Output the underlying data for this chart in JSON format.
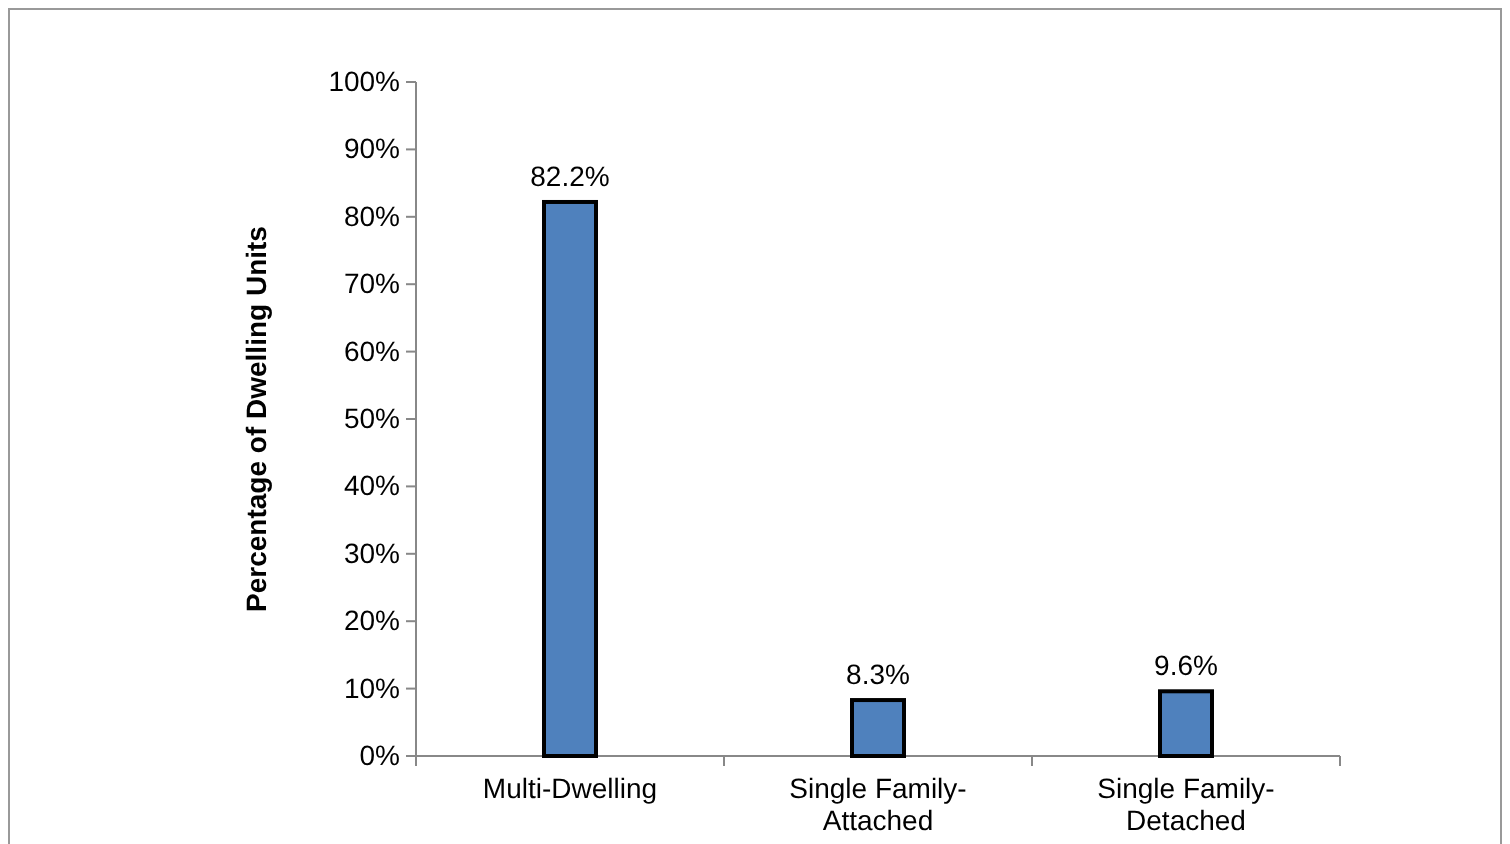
{
  "chart_data": {
    "type": "bar",
    "ylabel": "Percentage of Dwelling Units",
    "categories": [
      "Multi-Dwelling",
      "Single Family-Attached",
      "Single Family-Detached"
    ],
    "values": [
      82.2,
      8.3,
      9.6
    ],
    "value_labels": [
      "82.2%",
      "8.3%",
      "9.6%"
    ],
    "color": "#4f81bd",
    "ylim": [
      0,
      100
    ],
    "yticks": [
      {
        "value": 0,
        "label": "0%"
      },
      {
        "value": 10,
        "label": "10%"
      },
      {
        "value": 20,
        "label": "20%"
      },
      {
        "value": 30,
        "label": "30%"
      },
      {
        "value": 40,
        "label": "40%"
      },
      {
        "value": 50,
        "label": "50%"
      },
      {
        "value": 60,
        "label": "60%"
      },
      {
        "value": 70,
        "label": "70%"
      },
      {
        "value": 80,
        "label": "80%"
      },
      {
        "value": 90,
        "label": "90%"
      },
      {
        "value": 100,
        "label": "100%"
      }
    ],
    "grid": false
  }
}
